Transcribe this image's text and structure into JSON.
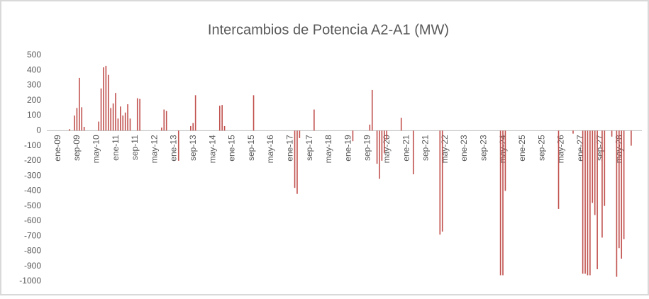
{
  "chart_data": {
    "type": "bar",
    "title": "Intercambios de Potencia A2-A1 (MW)",
    "categories": [
      "ene-09",
      null,
      null,
      null,
      null,
      null,
      null,
      null,
      "sep-09",
      null,
      null,
      null,
      null,
      null,
      null,
      null,
      "may-10",
      null,
      null,
      null,
      null,
      null,
      null,
      null,
      "ene-11",
      null,
      null,
      null,
      null,
      null,
      null,
      null,
      "sep-11",
      null,
      null,
      null,
      null,
      null,
      null,
      null,
      "may-12",
      null,
      null,
      null,
      null,
      null,
      null,
      null,
      "ene-13",
      null,
      null,
      null,
      null,
      null,
      null,
      null,
      "sep-13",
      null,
      null,
      null,
      null,
      null,
      null,
      null,
      "may-14",
      null,
      null,
      null,
      null,
      null,
      null,
      null,
      "ene-15",
      null,
      null,
      null,
      null,
      null,
      null,
      null,
      "sep-15",
      null,
      null,
      null,
      null,
      null,
      null,
      null,
      "may-16",
      null,
      null,
      null,
      null,
      null,
      null,
      null,
      "ene-17",
      null,
      null,
      null,
      null,
      null,
      null,
      null,
      "sep-17",
      null,
      null,
      null,
      null,
      null,
      null,
      null,
      "may-18",
      null,
      null,
      null,
      null,
      null,
      null,
      null,
      "ene-19",
      null,
      null,
      null,
      null,
      null,
      null,
      null,
      "sep-19",
      null,
      null,
      null,
      null,
      null,
      null,
      null,
      "may-20",
      null,
      null,
      null,
      null,
      null,
      null,
      null,
      "ene-21",
      null,
      null,
      null,
      null,
      null,
      null,
      null,
      "sep-21",
      null,
      null,
      null,
      null,
      null,
      null,
      null,
      "may-22",
      null,
      null,
      null,
      null,
      null,
      null,
      null,
      "ene-23",
      null,
      null,
      null,
      null,
      null,
      null,
      null,
      "sep-23",
      null,
      null,
      null,
      null,
      null,
      null,
      null,
      "may-24",
      null,
      null,
      null,
      null,
      null,
      null,
      null,
      "ene-25",
      null,
      null,
      null,
      null,
      null,
      null,
      null,
      "sep-25",
      null,
      null,
      null,
      null,
      null,
      null,
      null,
      "may-26",
      null,
      null,
      null,
      null,
      null,
      null,
      null,
      "ene-27",
      null,
      null,
      null,
      null,
      null,
      null,
      null,
      "sep-27",
      null,
      null,
      null,
      null,
      null,
      null,
      null,
      "may-28",
      null,
      null,
      null,
      null,
      null,
      null,
      null
    ],
    "values": [
      0,
      0,
      0,
      0,
      0,
      0,
      10,
      0,
      100,
      150,
      350,
      155,
      25,
      0,
      0,
      0,
      0,
      0,
      60,
      280,
      420,
      430,
      370,
      150,
      180,
      250,
      80,
      160,
      100,
      120,
      175,
      80,
      0,
      0,
      215,
      210,
      0,
      0,
      0,
      0,
      0,
      0,
      0,
      0,
      20,
      140,
      130,
      0,
      0,
      0,
      0,
      -200,
      0,
      0,
      0,
      0,
      30,
      50,
      235,
      0,
      0,
      0,
      0,
      0,
      0,
      0,
      0,
      0,
      165,
      170,
      30,
      0,
      0,
      0,
      0,
      0,
      0,
      0,
      0,
      0,
      0,
      0,
      235,
      0,
      0,
      0,
      0,
      0,
      0,
      0,
      0,
      0,
      0,
      0,
      0,
      0,
      0,
      0,
      0,
      -380,
      -420,
      -50,
      0,
      0,
      0,
      0,
      0,
      140,
      0,
      0,
      0,
      0,
      0,
      0,
      0,
      0,
      0,
      0,
      0,
      0,
      0,
      0,
      0,
      -70,
      0,
      0,
      0,
      0,
      0,
      0,
      40,
      270,
      0,
      -220,
      -320,
      -200,
      -150,
      -60,
      0,
      0,
      0,
      0,
      0,
      85,
      0,
      0,
      0,
      0,
      -290,
      0,
      0,
      0,
      0,
      0,
      0,
      0,
      0,
      0,
      0,
      -690,
      -670,
      0,
      0,
      0,
      0,
      0,
      0,
      0,
      0,
      0,
      0,
      0,
      0,
      0,
      0,
      0,
      0,
      0,
      0,
      0,
      0,
      0,
      0,
      0,
      -960,
      -960,
      -400,
      0,
      0,
      0,
      0,
      0,
      0,
      0,
      0,
      0,
      0,
      0,
      0,
      0,
      0,
      0,
      0,
      0,
      0,
      0,
      0,
      0,
      -520,
      0,
      0,
      0,
      0,
      0,
      -20,
      0,
      0,
      0,
      -950,
      -950,
      -960,
      -960,
      -480,
      -560,
      -920,
      0,
      -710,
      -500,
      0,
      0,
      -40,
      0,
      -970,
      -780,
      -850,
      -720,
      0,
      0,
      -100,
      0
    ],
    "color": "#c0504d",
    "ylim": [
      -1000,
      500
    ],
    "yticks": [
      500,
      400,
      300,
      200,
      100,
      0,
      -100,
      -200,
      -300,
      -400,
      -500,
      -600,
      -700,
      -800,
      -900,
      -1000
    ],
    "grid": false
  }
}
